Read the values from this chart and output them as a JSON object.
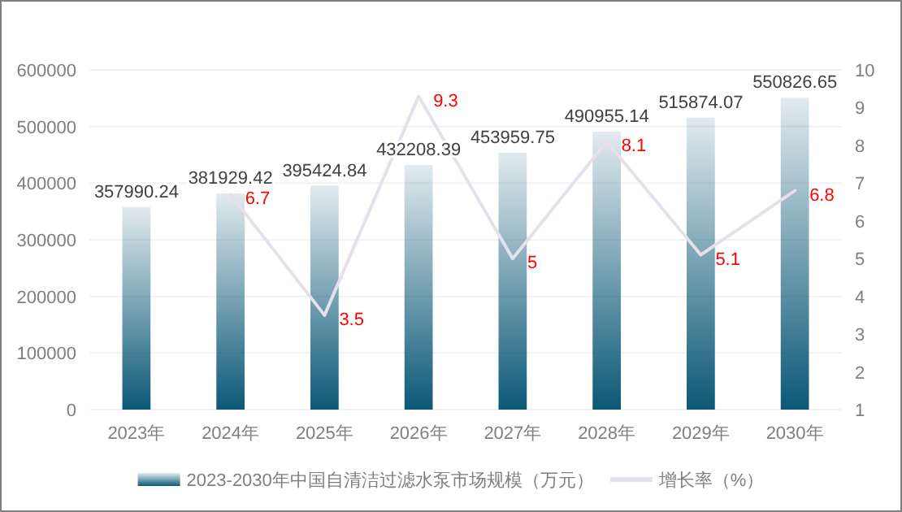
{
  "chart_data": {
    "type": "bar",
    "categories": [
      "2023年",
      "2024年",
      "2025年",
      "2026年",
      "2027年",
      "2028年",
      "2029年",
      "2030年"
    ],
    "series": [
      {
        "name": "2023-2030年中国自清洁过滤水泵市场规模（万元）",
        "color": "#0b5877",
        "values": [
          357990.24,
          381929.42,
          395424.84,
          432208.39,
          453959.75,
          490955.14,
          515874.07,
          550826.65
        ],
        "value_labels": [
          "357990.24",
          "381929.42",
          "395424.84",
          "432208.39",
          "453959.75",
          "490955.14",
          "515874.07",
          "550826.65"
        ]
      },
      {
        "name": "增长率（%）",
        "type": "line",
        "axis": "y2",
        "color": "#e6e0ec",
        "values": [
          null,
          6.7,
          3.5,
          9.3,
          5,
          8.1,
          5.1,
          6.8
        ],
        "value_labels": [
          null,
          "6.7",
          "3.5",
          "9.3",
          "5",
          "8.1",
          "5.1",
          "6.8"
        ]
      }
    ],
    "ylim": [
      0,
      600000
    ],
    "yticks": [
      0,
      100000,
      200000,
      300000,
      400000,
      500000,
      600000
    ],
    "y2lim": [
      1,
      10
    ],
    "y2ticks": [
      1,
      2,
      3,
      4,
      5,
      6,
      7,
      8,
      9,
      10
    ],
    "grid": "y",
    "legend": "bottom",
    "marker": "none",
    "line_style": "solid"
  }
}
